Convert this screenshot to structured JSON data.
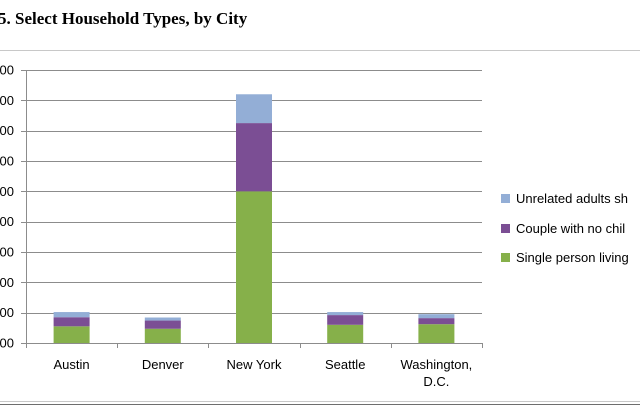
{
  "chart_title": "5. Select Household Types, by City",
  "chart_data": {
    "type": "bar",
    "stacked": true,
    "categories": [
      "Austin",
      "Denver",
      "New York",
      "Seattle",
      "Washington, D.C."
    ],
    "category_lines": [
      [
        "Austin"
      ],
      [
        "Denver"
      ],
      [
        "New York"
      ],
      [
        "Seattle"
      ],
      [
        "Washington,",
        "D.C."
      ]
    ],
    "ylim": [
      0,
      900000
    ],
    "ytick_step": 100000,
    "ytick_labels": [
      "00",
      "00",
      "00",
      "00",
      "00",
      "00",
      "00",
      "00",
      "00",
      "00"
    ],
    "grid": true,
    "legend_position": "right",
    "series": [
      {
        "name": "Single person living",
        "color": "#86b04a",
        "values": [
          55000,
          47000,
          500000,
          60000,
          62000
        ]
      },
      {
        "name": "Couple with no chil",
        "color": "#7b4e94",
        "values": [
          30000,
          27000,
          225000,
          32000,
          20000
        ]
      },
      {
        "name": "Unrelated adults sh",
        "color": "#93aed6",
        "values": [
          17000,
          10000,
          95000,
          10000,
          13000
        ]
      }
    ]
  }
}
